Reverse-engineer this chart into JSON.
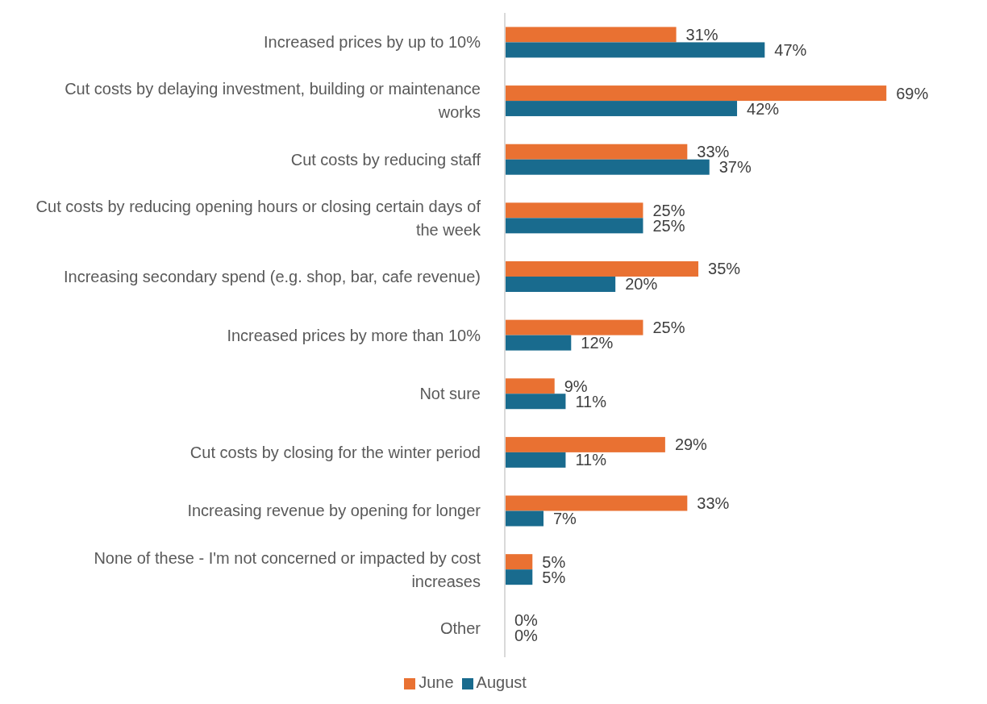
{
  "chart_data": {
    "type": "bar",
    "orientation": "horizontal",
    "categories": [
      "Increased prices by up to 10%",
      "Cut costs by delaying investment, building or maintenance works",
      "Cut costs by reducing staff",
      "Cut costs by reducing opening hours or closing certain days of the week",
      "Increasing secondary spend (e.g. shop, bar, cafe revenue)",
      "Increased prices by more than 10%",
      "Not sure",
      "Cut costs by closing for the winter period",
      "Increasing revenue by opening for longer",
      "None of these - I'm not concerned or impacted by cost increases",
      "Other"
    ],
    "series": [
      {
        "name": "June",
        "color": "#e97132",
        "values": [
          31,
          69,
          33,
          25,
          35,
          25,
          9,
          29,
          33,
          5,
          0
        ],
        "value_labels": [
          "31%",
          "69%",
          "33%",
          "25%",
          "35%",
          "25%",
          "9%",
          "29%",
          "33%",
          "5%",
          "0%"
        ]
      },
      {
        "name": "August",
        "color": "#196b8e",
        "values": [
          47,
          42,
          37,
          25,
          20,
          12,
          11,
          11,
          7,
          5,
          0
        ],
        "value_labels": [
          "47%",
          "42%",
          "37%",
          "25%",
          "20%",
          "12%",
          "11%",
          "11%",
          "7%",
          "5%",
          "0%"
        ]
      }
    ],
    "grid": false,
    "legend": "bottom"
  }
}
